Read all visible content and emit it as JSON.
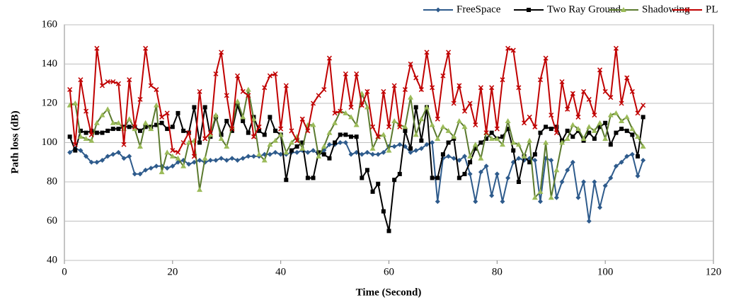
{
  "chart_data": {
    "type": "line",
    "xlabel": "Time (Second)",
    "ylabel": "Path loss (dB)",
    "xlim": [
      0,
      120
    ],
    "xticks": [
      0,
      20,
      40,
      60,
      80,
      100,
      120
    ],
    "ylim": [
      40,
      160
    ],
    "yticks": [
      40,
      60,
      80,
      100,
      120,
      140,
      160
    ],
    "grid": true,
    "legend": "top",
    "x": [
      1,
      2,
      3,
      4,
      5,
      6,
      7,
      8,
      9,
      10,
      11,
      12,
      13,
      14,
      15,
      16,
      17,
      18,
      19,
      20,
      21,
      22,
      23,
      24,
      25,
      26,
      27,
      28,
      29,
      30,
      31,
      32,
      33,
      34,
      35,
      36,
      37,
      38,
      39,
      40,
      41,
      42,
      43,
      44,
      45,
      46,
      47,
      48,
      49,
      50,
      51,
      52,
      53,
      54,
      55,
      56,
      57,
      58,
      59,
      60,
      61,
      62,
      63,
      64,
      65,
      66,
      67,
      68,
      69,
      70,
      71,
      72,
      73,
      74,
      75,
      76,
      77,
      78,
      79,
      80,
      81,
      82,
      83,
      84,
      85,
      86,
      87,
      88,
      89,
      90,
      91,
      92,
      93,
      94,
      95,
      96,
      97,
      98,
      99,
      100,
      101,
      102,
      103,
      104,
      105,
      106,
      107
    ],
    "series": [
      {
        "name": "FreeSpace",
        "color": "#2e5b8c",
        "marker": "diamond",
        "values": [
          95,
          97,
          96,
          93,
          90,
          90,
          91,
          93,
          94,
          95,
          92,
          93,
          84,
          84,
          86,
          87,
          88,
          88,
          87,
          88,
          90,
          91,
          89,
          90,
          91,
          90,
          91,
          91,
          92,
          91,
          92,
          91,
          92,
          93,
          93,
          93,
          94,
          94,
          95,
          94,
          94,
          95,
          95,
          96,
          95,
          96,
          94,
          96,
          99,
          99,
          100,
          100,
          94,
          95,
          94,
          95,
          94,
          94,
          95,
          98,
          98,
          99,
          98,
          95,
          96,
          97,
          99,
          100,
          70,
          92,
          93,
          92,
          91,
          93,
          84,
          70,
          85,
          88,
          73,
          84,
          70,
          82,
          90,
          92,
          91,
          92,
          91,
          70,
          92,
          91,
          72,
          80,
          86,
          90,
          72,
          80,
          60,
          80,
          67,
          78,
          82,
          88,
          90,
          93,
          94,
          83,
          91
        ]
      },
      {
        "name": "Two Ray Ground",
        "color": "#000000",
        "marker": "square",
        "values": [
          103,
          96,
          106,
          105,
          106,
          105,
          105,
          106,
          107,
          107,
          108,
          108,
          108,
          106,
          108,
          108,
          109,
          110,
          107,
          108,
          115,
          106,
          105,
          118,
          100,
          118,
          103,
          113,
          104,
          111,
          106,
          119,
          111,
          105,
          113,
          106,
          104,
          113,
          106,
          104,
          81,
          96,
          98,
          100,
          82,
          82,
          95,
          94,
          92,
          100,
          104,
          104,
          103,
          103,
          82,
          86,
          75,
          79,
          65,
          55,
          81,
          84,
          106,
          97,
          118,
          101,
          118,
          82,
          82,
          94,
          100,
          102,
          82,
          84,
          90,
          97,
          100,
          102,
          105,
          102,
          103,
          107,
          96,
          80,
          93,
          90,
          94,
          105,
          108,
          107,
          108,
          101,
          106,
          103,
          106,
          101,
          105,
          102,
          108,
          110,
          99,
          105,
          107,
          106,
          104,
          93,
          113
        ]
      },
      {
        "name": "Shadowing",
        "color": "#5b7a2e",
        "marker": "triangle",
        "marker_color": "#9bbb59",
        "values": [
          119,
          120,
          103,
          102,
          101,
          110,
          114,
          117,
          110,
          110,
          107,
          112,
          107,
          98,
          110,
          107,
          119,
          85,
          95,
          93,
          92,
          88,
          100,
          101,
          76,
          92,
          104,
          114,
          102,
          98,
          108,
          121,
          113,
          127,
          112,
          94,
          91,
          99,
          101,
          104,
          95,
          100,
          103,
          97,
          109,
          109,
          93,
          98,
          105,
          110,
          116,
          115,
          113,
          109,
          125,
          118,
          97,
          103,
          104,
          96,
          111,
          109,
          108,
          123,
          104,
          112,
          118,
          109,
          102,
          108,
          106,
          103,
          111,
          108,
          93,
          99,
          92,
          105,
          102,
          102,
          99,
          111,
          100,
          99,
          93,
          101,
          72,
          75,
          100,
          72,
          86,
          100,
          102,
          109,
          107,
          102,
          108,
          106,
          110,
          102,
          114,
          115,
          111,
          113,
          107,
          103,
          98
        ]
      },
      {
        "name": "PL",
        "color": "#c00000",
        "marker": "x",
        "values": [
          127,
          99,
          132,
          116,
          104,
          148,
          129,
          131,
          131,
          130,
          99,
          132,
          108,
          122,
          148,
          129,
          127,
          113,
          115,
          96,
          95,
          100,
          105,
          93,
          126,
          102,
          105,
          135,
          146,
          124,
          107,
          134,
          126,
          124,
          103,
          108,
          128,
          134,
          135,
          107,
          129,
          106,
          101,
          112,
          106,
          120,
          124,
          127,
          143,
          115,
          116,
          135,
          118,
          135,
          119,
          126,
          108,
          103,
          126,
          108,
          129,
          108,
          127,
          140,
          133,
          127,
          146,
          128,
          112,
          134,
          146,
          120,
          129,
          116,
          120,
          109,
          128,
          105,
          128,
          107,
          132,
          148,
          147,
          128,
          110,
          113,
          108,
          132,
          143,
          114,
          105,
          131,
          117,
          125,
          113,
          126,
          122,
          114,
          137,
          126,
          123,
          148,
          120,
          133,
          126,
          115,
          119
        ]
      }
    ]
  }
}
